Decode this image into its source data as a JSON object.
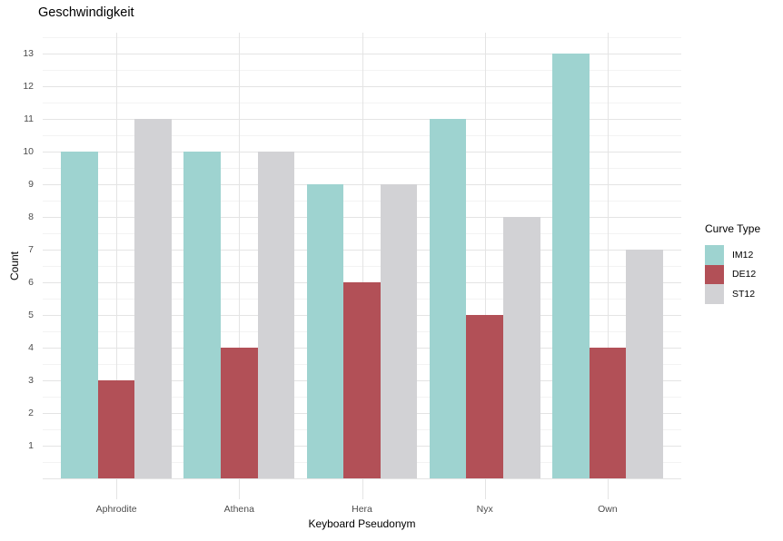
{
  "chart_data": {
    "type": "bar",
    "title": "Geschwindigkeit",
    "xlabel": "Keyboard Pseudonym",
    "ylabel": "Count",
    "categories": [
      "Aphrodite",
      "Athena",
      "Hera",
      "Nyx",
      "Own"
    ],
    "series": [
      {
        "name": "IM12",
        "color": "#9ed3d0",
        "values": [
          10,
          10,
          9,
          11,
          13
        ]
      },
      {
        "name": "DE12",
        "color": "#b25057",
        "values": [
          3,
          4,
          6,
          5,
          4
        ]
      },
      {
        "name": "ST12",
        "color": "#d2d2d5",
        "values": [
          11,
          10,
          9,
          8,
          7
        ]
      }
    ],
    "ylim": [
      -0.65,
      13.65
    ],
    "yticks": [
      1,
      2,
      3,
      4,
      5,
      6,
      7,
      8,
      9,
      10,
      11,
      12,
      13
    ],
    "grid": "major-and-minor-horizontal, major-vertical-at-categories",
    "legend_title": "Curve Type",
    "legend_position": "right",
    "colors": {
      "background": "#ffffff",
      "grid_major": "#e4e4e4",
      "grid_minor": "#f3f3f3",
      "tick_label": "#4d4d4d",
      "text": "#000000"
    }
  }
}
